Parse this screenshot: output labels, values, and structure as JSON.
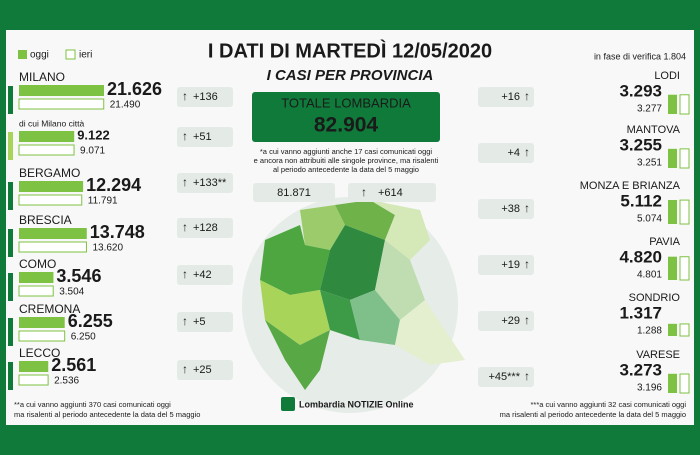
{
  "header": {
    "title": "I DATI DI MARTEDÌ 12/05/2020",
    "subtitle": "I CASI PER PROVINCIA",
    "legend_today": "oggi",
    "legend_yesterday": "ieri",
    "verification": "in fase di verifica 1.804"
  },
  "total": {
    "label": "TOTALE LOMBARDIA",
    "value": "82.904",
    "note": [
      "*a cui vanno aggiunti anche 17 casi comunicati oggi",
      "e ancora non attribuiti alle singole province, ma risalenti",
      "al periodo antecedente la data del 5 maggio"
    ],
    "previous": "81.871",
    "change": "+614"
  },
  "left_provinces": [
    {
      "name": "MILANO",
      "today": 21626,
      "today_label": "21.626",
      "yesterday": 21490,
      "yesterday_label": "21.490",
      "change": "+136"
    },
    {
      "name": "BERGAMO",
      "today": 12294,
      "today_label": "12.294",
      "yesterday": 11791,
      "yesterday_label": "11.791",
      "change": "+133**"
    },
    {
      "name": "BRESCIA",
      "today": 13748,
      "today_label": "13.748",
      "yesterday": 13620,
      "yesterday_label": "13.620",
      "change": "+128"
    },
    {
      "name": "COMO",
      "today": 3546,
      "today_label": "3.546",
      "yesterday": 3504,
      "yesterday_label": "3.504",
      "change": "+42"
    },
    {
      "name": "CREMONA",
      "today": 6255,
      "today_label": "6.255",
      "yesterday": 6250,
      "yesterday_label": "6.250",
      "change": "+5"
    },
    {
      "name": "LECCO",
      "today": 2561,
      "today_label": "2.561",
      "yesterday": 2536,
      "yesterday_label": "2.536",
      "change": "+25"
    }
  ],
  "milano_city": {
    "name": "di cui Milano città",
    "today": 9122,
    "today_label": "9.122",
    "yesterday": 9071,
    "yesterday_label": "9.071",
    "change": "+51"
  },
  "right_provinces": [
    {
      "name": "LODI",
      "today": 3293,
      "today_label": "3.293",
      "yesterday": 3277,
      "yesterday_label": "3.277",
      "change": "+16"
    },
    {
      "name": "MANTOVA",
      "today": 3255,
      "today_label": "3.255",
      "yesterday": 3251,
      "yesterday_label": "3.251",
      "change": "+4"
    },
    {
      "name": "MONZA E BRIANZA",
      "today": 5112,
      "today_label": "5.112",
      "yesterday": 5074,
      "yesterday_label": "5.074",
      "change": "+38"
    },
    {
      "name": "PAVIA",
      "today": 4820,
      "today_label": "4.820",
      "yesterday": 4801,
      "yesterday_label": "4.801",
      "change": "+19"
    },
    {
      "name": "SONDRIO",
      "today": 1317,
      "today_label": "1.317",
      "yesterday": 1288,
      "yesterday_label": "1.288",
      "change": "+29"
    },
    {
      "name": "VARESE",
      "today": 3273,
      "today_label": "3.273",
      "yesterday": 3196,
      "yesterday_label": "3.196",
      "change": "+45***"
    }
  ],
  "footnote_left": [
    "**a cui vanno aggiunti 370 casi comunicati oggi",
    "ma risalenti al periodo antecedente la data del 5 maggio"
  ],
  "footnote_right": [
    "***a cui vanno aggiunti 32 casi comunicati oggi",
    "ma risalenti al periodo antecedente la data del 5 maggio"
  ],
  "logo": "Lombardia NOTIZIE Online"
}
